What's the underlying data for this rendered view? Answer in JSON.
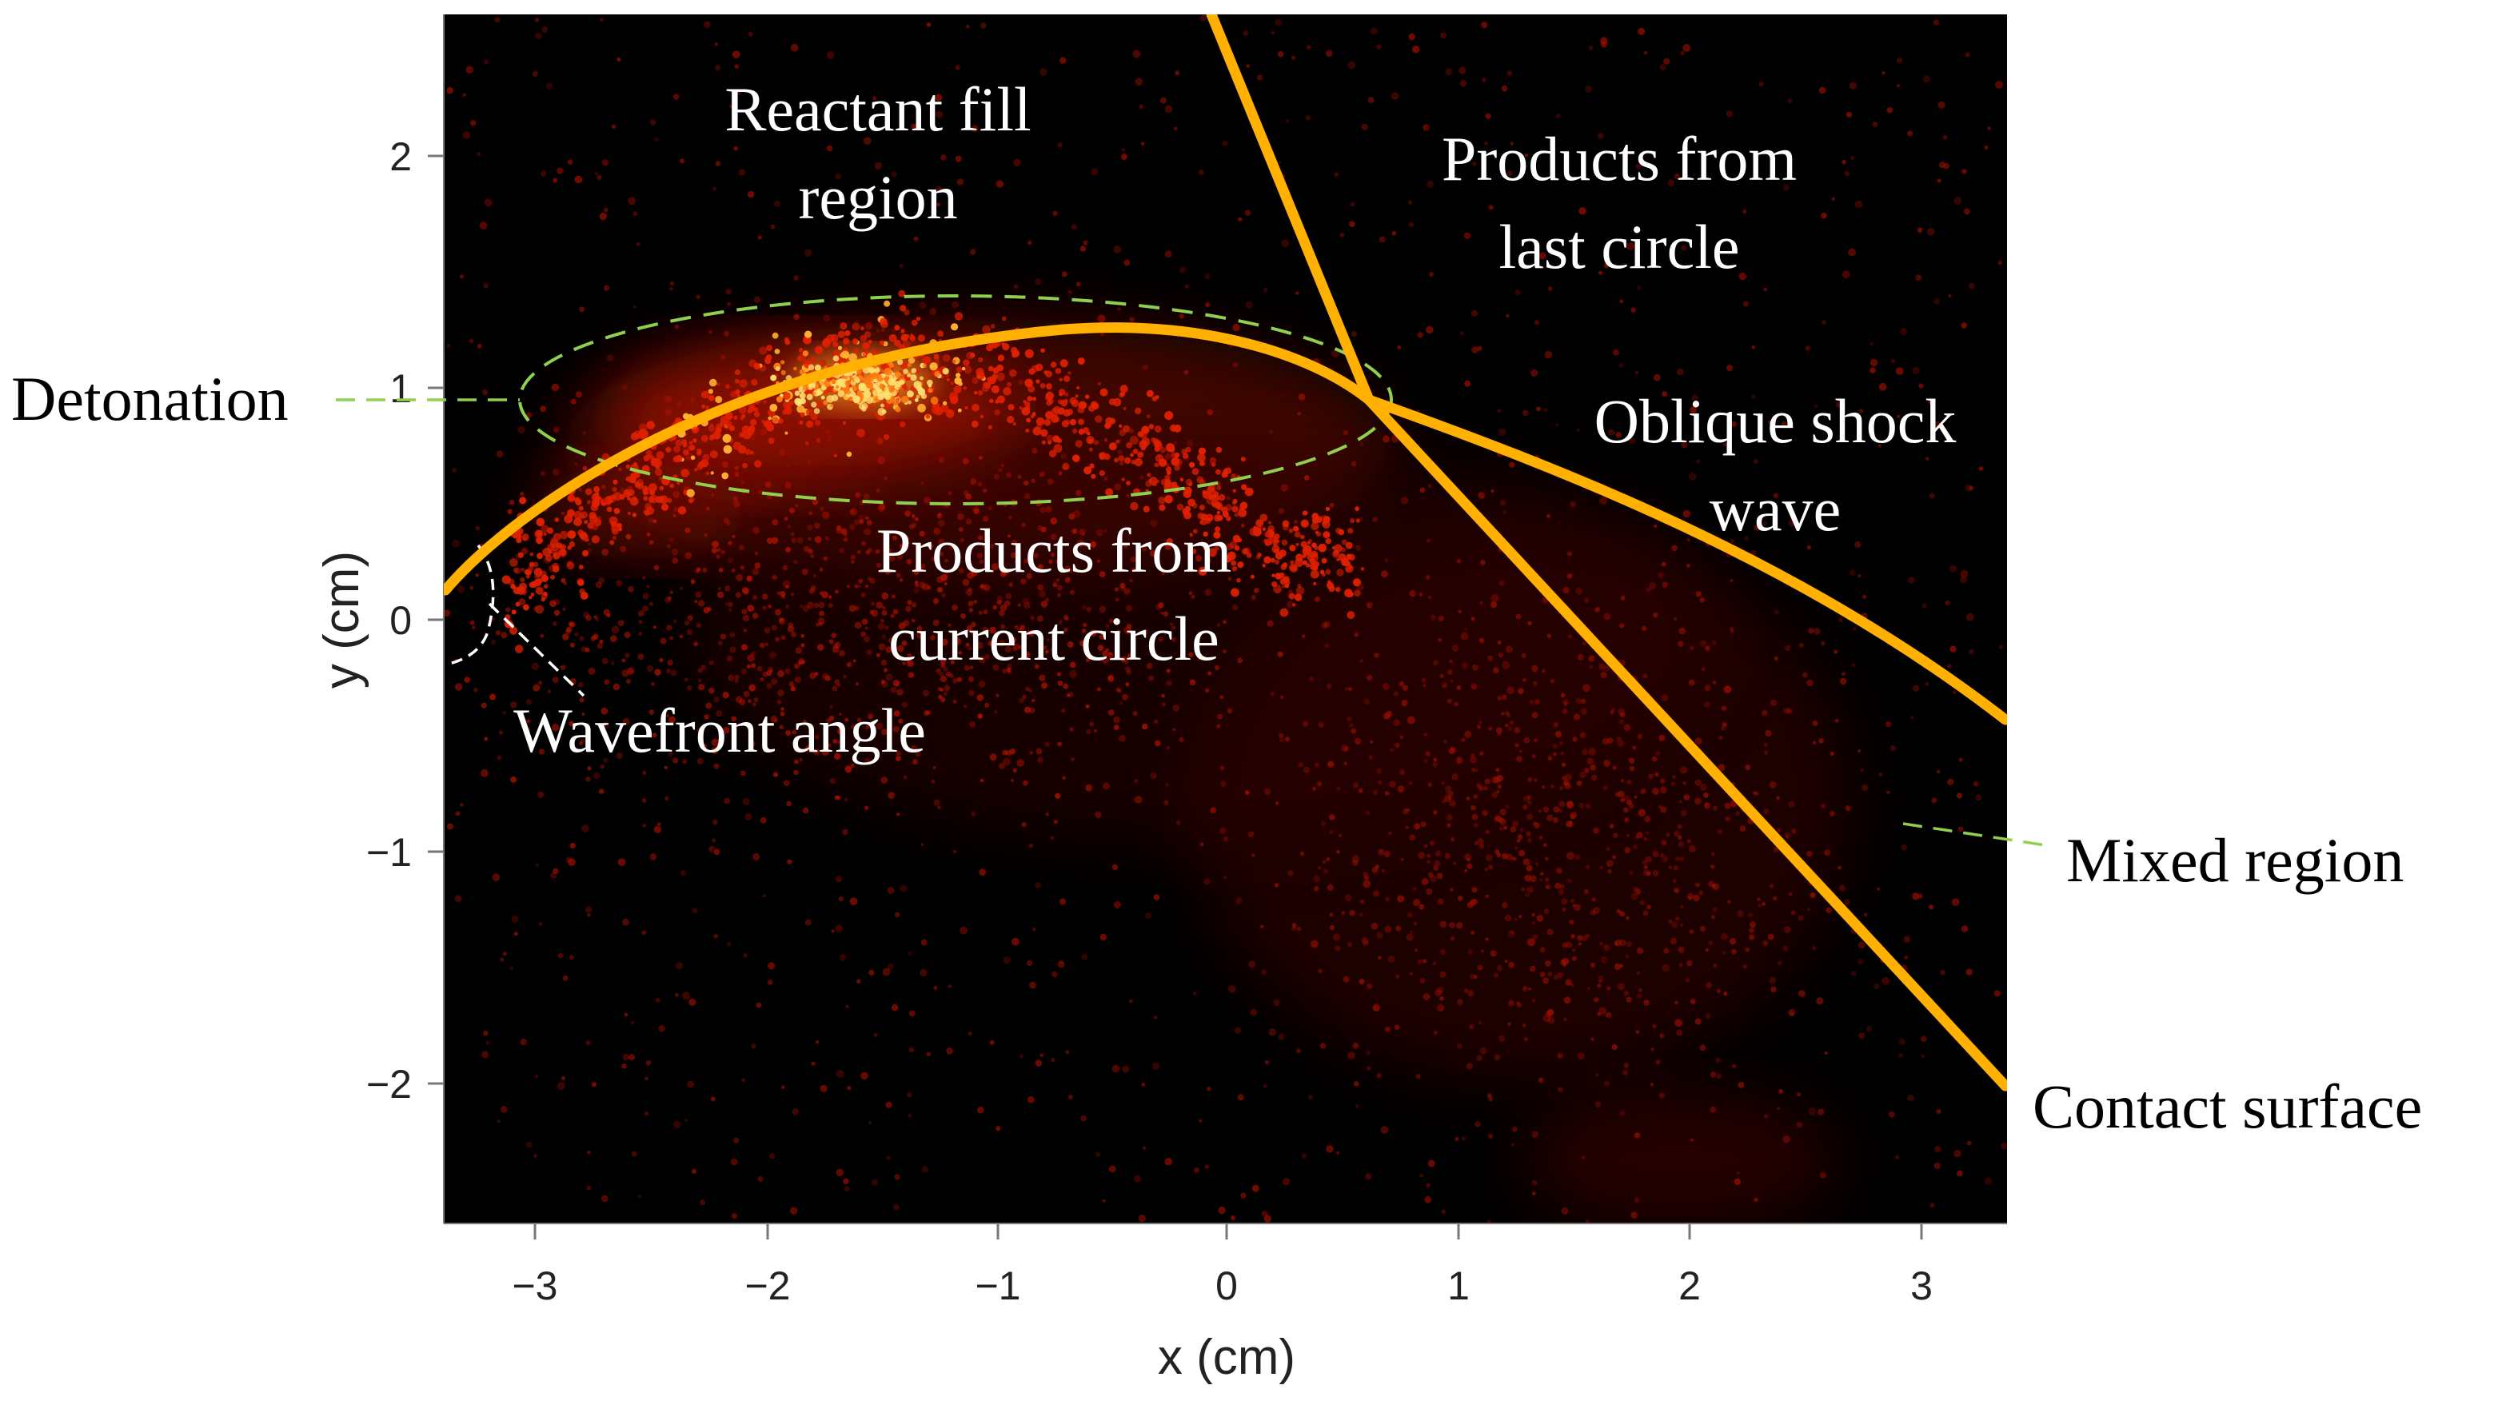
{
  "axes": {
    "x_label": "x (cm)",
    "y_label": "y (cm)",
    "x_range": [
      -3.4,
      3.4
    ],
    "y_range": [
      -2.6,
      2.6
    ],
    "x_ticks": [
      -3,
      -2,
      -1,
      0,
      1,
      2,
      3
    ],
    "x_tick_labels": [
      "−3",
      "−2",
      "−1",
      "0",
      "1",
      "2",
      "3"
    ],
    "y_ticks": [
      2,
      1,
      0,
      -1,
      -2
    ],
    "y_tick_labels": [
      "2",
      "1",
      "0",
      "−1",
      "−2"
    ]
  },
  "colors": {
    "background": "#000000",
    "emission_dim": "#8a0a00",
    "emission_bright": "#ffd24a",
    "wave_lines": "#ffb000",
    "leader_green": "#8fd14f",
    "leader_white": "#ffffff",
    "text_inside": "#ffffff",
    "text_outside": "#000000"
  },
  "annotations": {
    "reactant_fill": [
      "Reactant fill",
      "region"
    ],
    "products_last": [
      "Products from",
      "last circle"
    ],
    "detonation": "Detonation",
    "oblique_shock": [
      "Oblique shock",
      "wave"
    ],
    "products_current": [
      "Products from",
      "current circle"
    ],
    "wavefront_angle": "Wavefront angle",
    "mixed_region": "Mixed region",
    "contact_surface": "Contact surface"
  }
}
